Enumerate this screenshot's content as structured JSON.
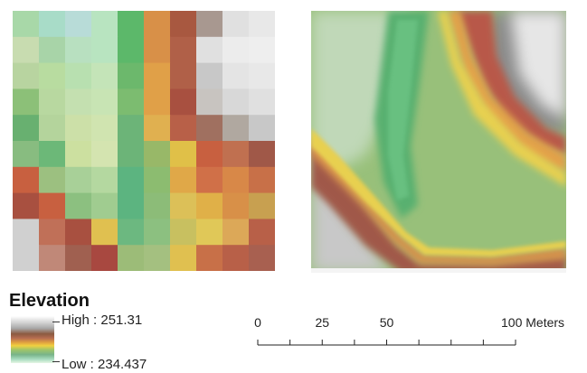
{
  "legend": {
    "title": "Elevation",
    "high_label": "High : 251.31",
    "low_label": "Low : 234.437"
  },
  "scale_bar": {
    "ticks": [
      {
        "value": 0,
        "label": "0"
      },
      {
        "value": 25,
        "label": "25"
      },
      {
        "value": 50,
        "label": "50"
      },
      {
        "value": 100,
        "label": "100 Meters"
      }
    ],
    "minor_divisions": [
      12.5,
      37.5,
      62.5,
      75,
      87.5
    ]
  },
  "colors": {
    "ramp": [
      "#ffffff",
      "#d2d2d2",
      "#a8a8a8",
      "#8c5a40",
      "#b56d52",
      "#e0a040",
      "#f0d040",
      "#9ec46a",
      "#78b48a",
      "#a8dcc0",
      "#e6f6e4"
    ]
  },
  "grid_raster": {
    "rows": 10,
    "cols": 10,
    "cells": [
      [
        "#a8d8a8",
        "#a8dcc8",
        "#b8dcd8",
        "#b8e4c0",
        "#5cb86a",
        "#d89048",
        "#a85840",
        "#a89890",
        "#e0e0e0",
        "#e8e8e8"
      ],
      [
        "#c8dcb0",
        "#a8d4a8",
        "#b8e0c0",
        "#b8e4c0",
        "#5cb86a",
        "#d89048",
        "#b06048",
        "#e0e0e0",
        "#ececec",
        "#eeeeee"
      ],
      [
        "#b8d4a0",
        "#b8dca0",
        "#b8e0b0",
        "#c4e4b8",
        "#6cb86c",
        "#e0a048",
        "#b06048",
        "#c8c8c8",
        "#e4e4e4",
        "#e8e8e8"
      ],
      [
        "#8cc078",
        "#b8d8a0",
        "#c4e0b0",
        "#c8e4b4",
        "#7cbc70",
        "#e0a048",
        "#a85040",
        "#c8c4c0",
        "#d8d8d8",
        "#e0e0e0"
      ],
      [
        "#68b070",
        "#b4d49c",
        "#cce0a8",
        "#d0e4b0",
        "#6cb478",
        "#e0b050",
        "#b86048",
        "#a07060",
        "#b0a8a0",
        "#c8c8c8"
      ],
      [
        "#88bc80",
        "#6cb878",
        "#cce0a0",
        "#d4e4b0",
        "#6cb478",
        "#98b868",
        "#e0c048",
        "#c86040",
        "#c07050",
        "#a05848"
      ],
      [
        "#c86040",
        "#9cc080",
        "#a8d098",
        "#b4d8a0",
        "#5cb480",
        "#8cbc70",
        "#e0a848",
        "#d07048",
        "#d88848",
        "#c87048"
      ],
      [
        "#a85040",
        "#c86040",
        "#8cc080",
        "#a0cc90",
        "#5cb480",
        "#8cbc78",
        "#dcc058",
        "#e0b048",
        "#d89048",
        "#c8a050"
      ],
      [
        "#d0d0d0",
        "#c07058",
        "#a85040",
        "#e0c050",
        "#6cb880",
        "#8cc080",
        "#c8c060",
        "#e0c858",
        "#dca858",
        "#b86048"
      ],
      [
        "#d0d0d0",
        "#c08878",
        "#a06050",
        "#a84840",
        "#9cbc78",
        "#a4c080",
        "#e0c050",
        "#c87048",
        "#b86048",
        "#a86050"
      ]
    ]
  }
}
